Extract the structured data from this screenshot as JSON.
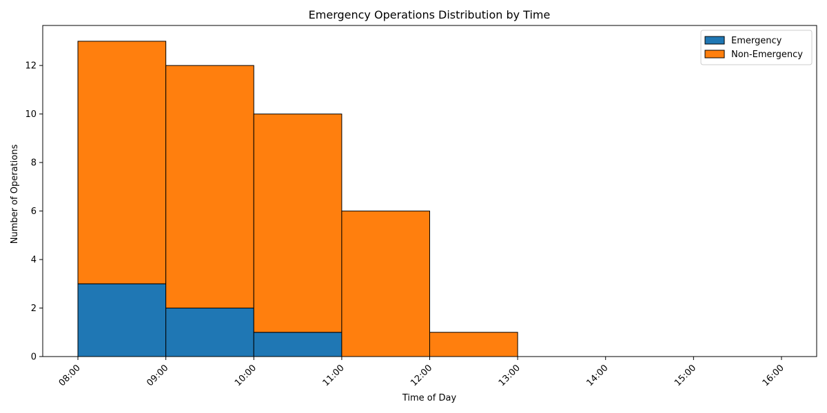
{
  "chart_data": {
    "type": "bar",
    "stacked": true,
    "title": "Emergency Operations Distribution by Time",
    "xlabel": "Time of Day",
    "ylabel": "Number of Operations",
    "x_ticks": [
      "08:00",
      "09:00",
      "10:00",
      "11:00",
      "12:00",
      "13:00",
      "14:00",
      "15:00",
      "16:00"
    ],
    "bins": [
      {
        "start": "08:00",
        "end": "09:00"
      },
      {
        "start": "09:00",
        "end": "10:00"
      },
      {
        "start": "10:00",
        "end": "11:00"
      },
      {
        "start": "11:00",
        "end": "12:00"
      },
      {
        "start": "12:00",
        "end": "13:00"
      },
      {
        "start": "13:00",
        "end": "14:00"
      },
      {
        "start": "14:00",
        "end": "15:00"
      },
      {
        "start": "15:00",
        "end": "16:00"
      }
    ],
    "series": [
      {
        "name": "Emergency",
        "color": "#1f77b4",
        "values": [
          3,
          2,
          1,
          0,
          0,
          0,
          0,
          0
        ]
      },
      {
        "name": "Non-Emergency",
        "color": "#ff7f0e",
        "values": [
          10,
          10,
          9,
          6,
          1,
          0,
          0,
          0
        ]
      }
    ],
    "y_ticks": [
      0,
      2,
      4,
      6,
      8,
      10,
      12
    ],
    "ylim": [
      0,
      13.65
    ],
    "xlim": [
      "07:36",
      "16:24"
    ],
    "grid": false,
    "legend_position": "top-right",
    "x_tick_rotation_deg": 45
  }
}
